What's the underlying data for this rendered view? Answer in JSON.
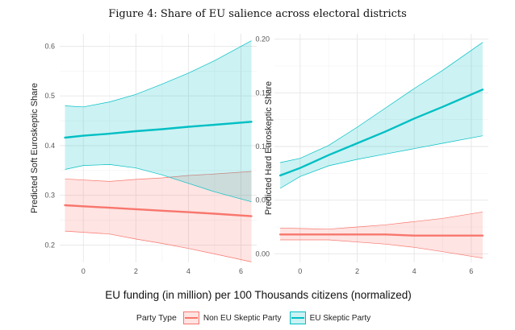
{
  "figure_title": "Figure 4: Share of EU salience across electoral districts",
  "colors": {
    "non_skeptic": "#F8766D",
    "skeptic": "#00BFC4",
    "non_skeptic_fill": "#F8766D",
    "skeptic_fill": "#00BFC4"
  },
  "chart_data": [
    {
      "type": "line",
      "title": "",
      "xlabel": "",
      "ylabel": "Predicted Soft Euroskeptic Share",
      "xlim": [
        -0.9,
        6.6
      ],
      "ylim": [
        0.165,
        0.625
      ],
      "xticks": [
        0,
        2,
        4,
        6
      ],
      "xtick_labels": [
        "0",
        "2",
        "4",
        "6"
      ],
      "yticks": [
        0.2,
        0.3,
        0.4,
        0.5,
        0.6
      ],
      "ytick_labels": [
        "0.2",
        "0.3",
        "0.4",
        "0.5",
        "0.6"
      ],
      "series": [
        {
          "name": "Non EU Skeptic Party",
          "color_key": "non_skeptic",
          "x": [
            -0.7,
            1,
            2,
            3,
            4,
            5,
            6.4
          ],
          "y": [
            0.28,
            0.275,
            0.272,
            0.269,
            0.266,
            0.263,
            0.258
          ],
          "lower": [
            0.228,
            0.222,
            0.212,
            0.203,
            0.193,
            0.182,
            0.166
          ],
          "upper": [
            0.333,
            0.328,
            0.332,
            0.335,
            0.34,
            0.343,
            0.348
          ]
        },
        {
          "name": "EU Skeptic Party",
          "color_key": "skeptic",
          "x": [
            -0.7,
            0,
            1,
            2,
            3,
            4,
            5,
            6.4
          ],
          "y": [
            0.416,
            0.42,
            0.424,
            0.429,
            0.433,
            0.438,
            0.442,
            0.448
          ],
          "lower": [
            0.352,
            0.36,
            0.362,
            0.355,
            0.341,
            0.324,
            0.307,
            0.287
          ],
          "upper": [
            0.48,
            0.478,
            0.488,
            0.503,
            0.524,
            0.546,
            0.571,
            0.611
          ]
        }
      ]
    },
    {
      "type": "line",
      "title": "",
      "xlabel": "",
      "ylabel": "Predicted Hard Euroskeptic Share",
      "xlim": [
        -0.9,
        6.6
      ],
      "ylim": [
        -0.008,
        0.205
      ],
      "xticks": [
        0,
        2,
        4,
        6
      ],
      "xtick_labels": [
        "0",
        "2",
        "4",
        "6"
      ],
      "yticks": [
        0.0,
        0.05,
        0.1,
        0.15,
        0.2
      ],
      "ytick_labels": [
        "0.00",
        "0.05",
        "0.10",
        "0.15",
        "0.20"
      ],
      "series": [
        {
          "name": "Non EU Skeptic Party",
          "color_key": "non_skeptic",
          "x": [
            -0.7,
            1,
            2,
            3,
            4,
            5,
            6.4
          ],
          "y": [
            0.018,
            0.018,
            0.018,
            0.018,
            0.017,
            0.017,
            0.017
          ],
          "lower": [
            0.013,
            0.013,
            0.011,
            0.009,
            0.006,
            0.002,
            -0.004
          ],
          "upper": [
            0.024,
            0.023,
            0.025,
            0.027,
            0.03,
            0.033,
            0.039
          ]
        },
        {
          "name": "EU Skeptic Party",
          "color_key": "skeptic",
          "x": [
            -0.7,
            0,
            1,
            2,
            3,
            4,
            5,
            6.4
          ],
          "y": [
            0.073,
            0.08,
            0.092,
            0.103,
            0.114,
            0.126,
            0.137,
            0.153
          ],
          "lower": [
            0.061,
            0.072,
            0.082,
            0.088,
            0.093,
            0.098,
            0.103,
            0.11
          ],
          "upper": [
            0.085,
            0.089,
            0.101,
            0.118,
            0.136,
            0.154,
            0.171,
            0.197
          ]
        }
      ]
    }
  ],
  "shared_xlabel": "EU funding (in million) per 100 Thousands citizens (normalized)",
  "legend": {
    "title": "Party Type",
    "items": [
      {
        "label": "Non EU Skeptic Party",
        "color_key": "non_skeptic"
      },
      {
        "label": "EU Skeptic Party",
        "color_key": "skeptic"
      }
    ]
  }
}
